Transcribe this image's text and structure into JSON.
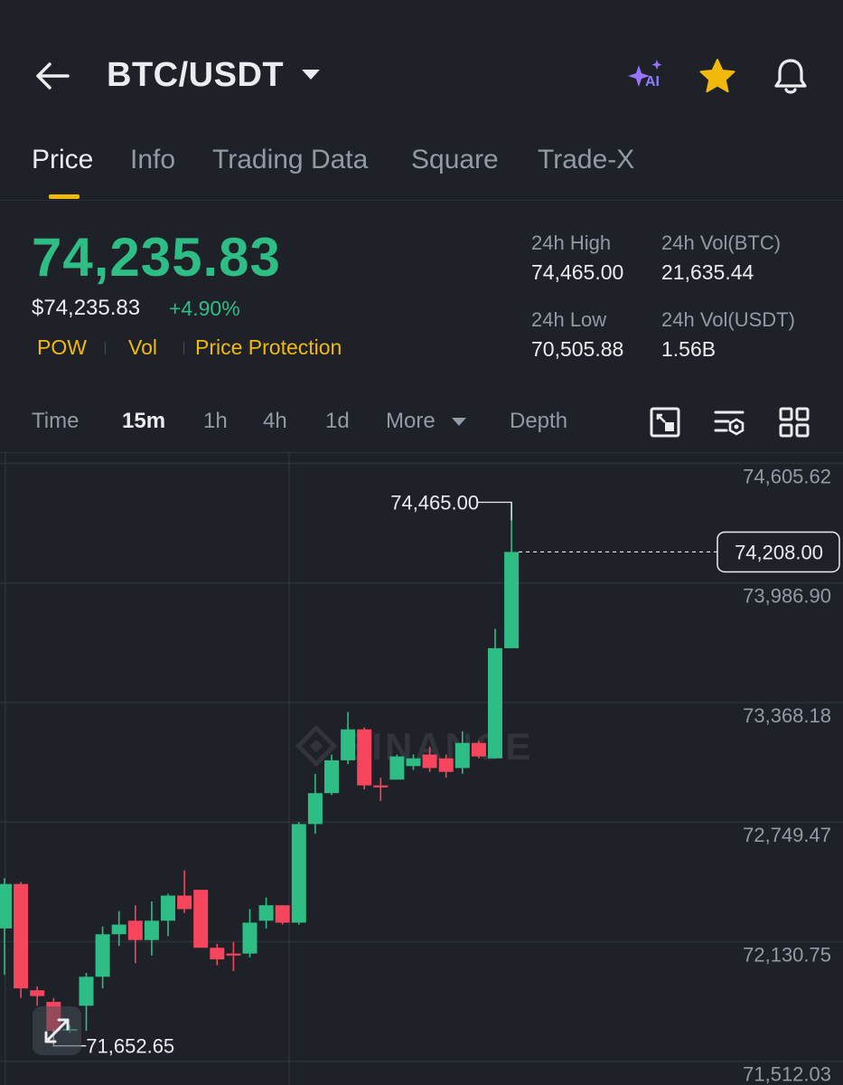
{
  "header": {
    "pair": "BTC/USDT",
    "icons": [
      "back-arrow-icon",
      "chevron-down-icon",
      "ai-sparkle-icon",
      "star-icon",
      "bell-icon"
    ],
    "ai_label": "AI"
  },
  "tabs": [
    "Price",
    "Info",
    "Trading Data",
    "Square",
    "Trade-X"
  ],
  "ticker": {
    "last_price": "74,235.83",
    "usd_price": "$74,235.83",
    "change": "+4.90%",
    "tags": [
      "POW",
      "Vol",
      "Price Protection"
    ],
    "stats": {
      "high_label": "24h High",
      "high_value": "74,465.00",
      "vol_btc_label": "24h Vol(BTC)",
      "vol_btc_value": "21,635.44",
      "low_label": "24h Low",
      "low_value": "70,505.88",
      "vol_usdt_label": "24h Vol(USDT)",
      "vol_usdt_value": "1.56B"
    }
  },
  "intervals": {
    "items": [
      "Time",
      "15m",
      "1h",
      "4h",
      "1d",
      "More",
      "Depth"
    ],
    "selected": "15m",
    "tool_icons": [
      "chart-settings-icon",
      "indicator-icon",
      "grid-layout-icon",
      "expand-icon"
    ]
  },
  "colors": {
    "up": "#2ebd85",
    "down": "#f6465d",
    "accent": "#f0b90b",
    "background": "#1e2228"
  },
  "chart_data": {
    "type": "candlestick",
    "interval": "15m",
    "watermark": "BINANCE",
    "y_ticks": [
      "74,605.62",
      "73,986.90",
      "73,368.18",
      "72,749.47",
      "72,130.75",
      "71,512.03"
    ],
    "ylim": [
      71450,
      74720
    ],
    "current_price": "74,208.00",
    "high_marker": "74,465.00",
    "low_marker": "71,652.65",
    "candles": [
      {
        "o": 72260,
        "c": 72490,
        "h": 72520,
        "l": 72020
      },
      {
        "o": 72490,
        "c": 71950,
        "h": 72500,
        "l": 71900
      },
      {
        "o": 71940,
        "c": 71910,
        "h": 71960,
        "l": 71860
      },
      {
        "o": 71880,
        "c": 71730,
        "h": 71900,
        "l": 71650
      },
      {
        "o": 71740,
        "c": 71740,
        "h": 71760,
        "l": 71720
      },
      {
        "o": 71860,
        "c": 72010,
        "h": 72030,
        "l": 71730
      },
      {
        "o": 72010,
        "c": 72230,
        "h": 72270,
        "l": 71950
      },
      {
        "o": 72230,
        "c": 72280,
        "h": 72350,
        "l": 72170
      },
      {
        "o": 72300,
        "c": 72200,
        "h": 72380,
        "l": 72080
      },
      {
        "o": 72200,
        "c": 72300,
        "h": 72400,
        "l": 72120
      },
      {
        "o": 72300,
        "c": 72430,
        "h": 72440,
        "l": 72220
      },
      {
        "o": 72430,
        "c": 72360,
        "h": 72560,
        "l": 72340
      },
      {
        "o": 72460,
        "c": 72160,
        "h": 72460,
        "l": 72160
      },
      {
        "o": 72160,
        "c": 72100,
        "h": 72180,
        "l": 72070
      },
      {
        "o": 72130,
        "c": 72120,
        "h": 72190,
        "l": 72040
      },
      {
        "o": 72130,
        "c": 72290,
        "h": 72360,
        "l": 72110
      },
      {
        "o": 72300,
        "c": 72380,
        "h": 72420,
        "l": 72260
      },
      {
        "o": 72380,
        "c": 72290,
        "h": 72380,
        "l": 72280
      },
      {
        "o": 72290,
        "c": 72800,
        "h": 72810,
        "l": 72280
      },
      {
        "o": 72800,
        "c": 72960,
        "h": 73060,
        "l": 72750
      },
      {
        "o": 72960,
        "c": 73130,
        "h": 73160,
        "l": 72950
      },
      {
        "o": 73130,
        "c": 73290,
        "h": 73380,
        "l": 73110
      },
      {
        "o": 73290,
        "c": 73000,
        "h": 73300,
        "l": 72980
      },
      {
        "o": 73000,
        "c": 72990,
        "h": 73040,
        "l": 72920
      },
      {
        "o": 73030,
        "c": 73150,
        "h": 73160,
        "l": 73030
      },
      {
        "o": 73100,
        "c": 73140,
        "h": 73160,
        "l": 73080
      },
      {
        "o": 73160,
        "c": 73090,
        "h": 73200,
        "l": 73070
      },
      {
        "o": 73140,
        "c": 73070,
        "h": 73160,
        "l": 73040
      },
      {
        "o": 73090,
        "c": 73220,
        "h": 73280,
        "l": 73060
      },
      {
        "o": 73220,
        "c": 73150,
        "h": 73230,
        "l": 73140
      },
      {
        "o": 73140,
        "c": 73710,
        "h": 73810,
        "l": 73140
      },
      {
        "o": 73710,
        "c": 74208,
        "h": 74465,
        "l": 73710
      }
    ]
  }
}
